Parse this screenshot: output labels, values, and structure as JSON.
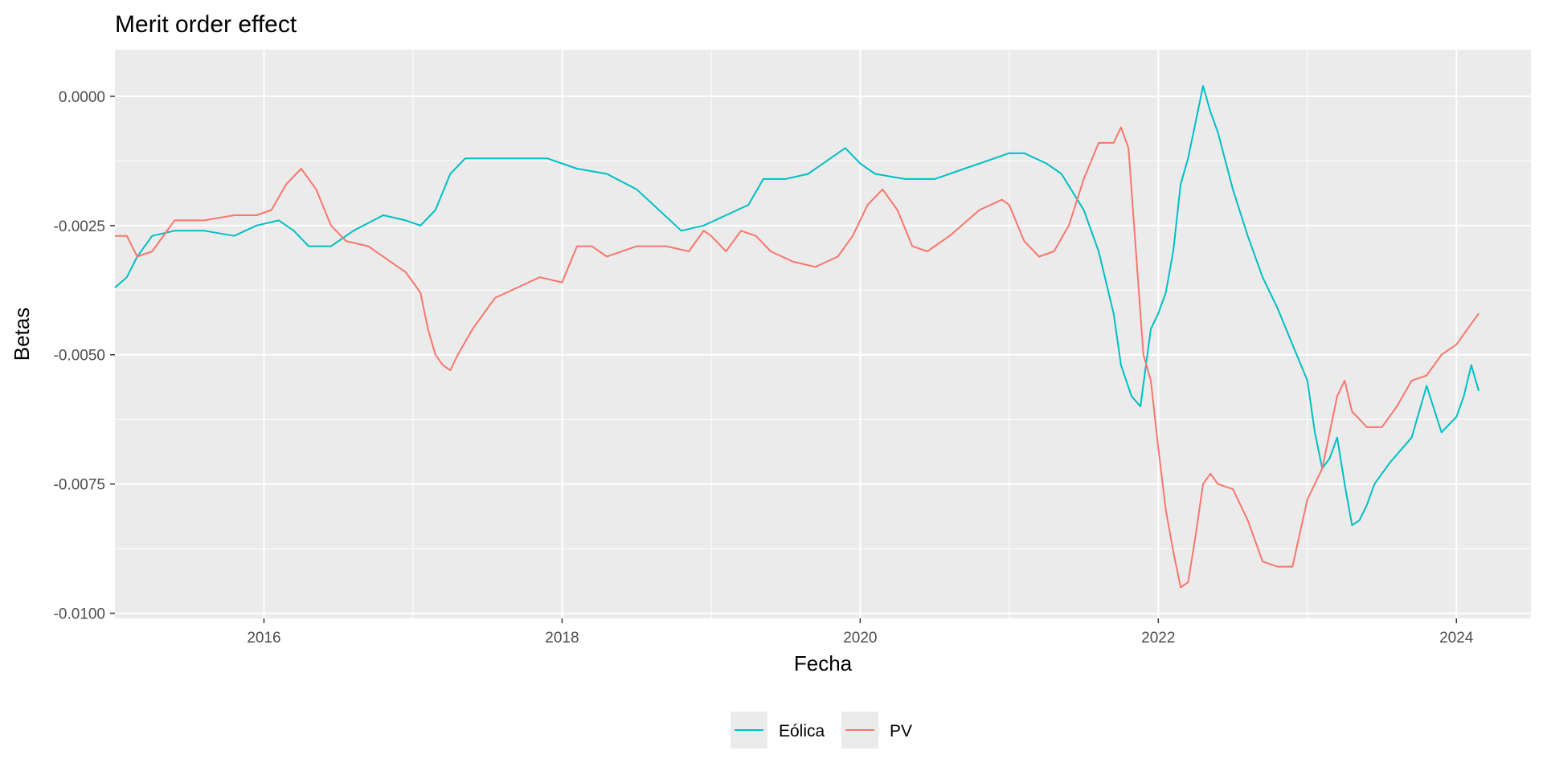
{
  "chart_data": {
    "type": "line",
    "title": "Merit order effect",
    "xlabel": "Fecha",
    "ylabel": "Betas",
    "xlim": [
      2015.0,
      2024.5
    ],
    "ylim": [
      -0.0101,
      0.0009
    ],
    "x_ticks": [
      {
        "value": 2016,
        "label": "2016"
      },
      {
        "value": 2018,
        "label": "2018"
      },
      {
        "value": 2020,
        "label": "2020"
      },
      {
        "value": 2022,
        "label": "2022"
      },
      {
        "value": 2024,
        "label": "2024"
      }
    ],
    "y_ticks": [
      {
        "value": 0.0,
        "label": "0.0000"
      },
      {
        "value": -0.0025,
        "label": "-0.0025"
      },
      {
        "value": -0.005,
        "label": "-0.0050"
      },
      {
        "value": -0.0075,
        "label": "-0.0075"
      },
      {
        "value": -0.01,
        "label": "-0.0100"
      }
    ],
    "grid": true,
    "legend_position": "bottom",
    "series": [
      {
        "name": "Eólica",
        "color": "#00BFC4",
        "x": [
          2015.0,
          2015.08,
          2015.15,
          2015.25,
          2015.4,
          2015.6,
          2015.8,
          2015.95,
          2016.1,
          2016.2,
          2016.3,
          2016.45,
          2016.6,
          2016.8,
          2016.95,
          2017.05,
          2017.15,
          2017.25,
          2017.35,
          2017.5,
          2017.7,
          2017.9,
          2018.1,
          2018.3,
          2018.5,
          2018.65,
          2018.8,
          2018.95,
          2019.1,
          2019.25,
          2019.35,
          2019.5,
          2019.65,
          2019.8,
          2019.9,
          2020.0,
          2020.1,
          2020.3,
          2020.5,
          2020.7,
          2020.9,
          2021.0,
          2021.1,
          2021.25,
          2021.35,
          2021.5,
          2021.6,
          2021.7,
          2021.75,
          2021.82,
          2021.88,
          2021.95,
          2022.0,
          2022.05,
          2022.1,
          2022.15,
          2022.2,
          2022.25,
          2022.3,
          2022.35,
          2022.4,
          2022.5,
          2022.6,
          2022.7,
          2022.8,
          2022.9,
          2023.0,
          2023.05,
          2023.1,
          2023.15,
          2023.2,
          2023.25,
          2023.3,
          2023.35,
          2023.4,
          2023.45,
          2023.55,
          2023.7,
          2023.8,
          2023.9,
          2024.0,
          2024.05,
          2024.1,
          2024.15
        ],
        "values": [
          -0.0037,
          -0.0035,
          -0.0031,
          -0.0027,
          -0.0026,
          -0.0026,
          -0.0027,
          -0.0025,
          -0.0024,
          -0.0026,
          -0.0029,
          -0.0029,
          -0.0026,
          -0.0023,
          -0.0024,
          -0.0025,
          -0.0022,
          -0.0015,
          -0.0012,
          -0.0012,
          -0.0012,
          -0.0012,
          -0.0014,
          -0.0015,
          -0.0018,
          -0.0022,
          -0.0026,
          -0.0025,
          -0.0023,
          -0.0021,
          -0.0016,
          -0.0016,
          -0.0015,
          -0.0012,
          -0.001,
          -0.0013,
          -0.0015,
          -0.0016,
          -0.0016,
          -0.0014,
          -0.0012,
          -0.0011,
          -0.0011,
          -0.0013,
          -0.0015,
          -0.0022,
          -0.003,
          -0.0042,
          -0.0052,
          -0.0058,
          -0.006,
          -0.0045,
          -0.0042,
          -0.0038,
          -0.003,
          -0.0017,
          -0.0012,
          -0.0005,
          0.0002,
          -0.0003,
          -0.0007,
          -0.0018,
          -0.0027,
          -0.0035,
          -0.0041,
          -0.0048,
          -0.0055,
          -0.0065,
          -0.0072,
          -0.007,
          -0.0066,
          -0.0075,
          -0.0083,
          -0.0082,
          -0.0079,
          -0.0075,
          -0.0071,
          -0.0066,
          -0.0056,
          -0.0065,
          -0.0062,
          -0.0058,
          -0.0052,
          -0.0057
        ]
      },
      {
        "name": "PV",
        "color": "#F8766D",
        "x": [
          2015.0,
          2015.08,
          2015.15,
          2015.25,
          2015.4,
          2015.6,
          2015.8,
          2015.95,
          2016.05,
          2016.15,
          2016.25,
          2016.35,
          2016.45,
          2016.55,
          2016.7,
          2016.85,
          2016.95,
          2017.05,
          2017.1,
          2017.15,
          2017.2,
          2017.25,
          2017.3,
          2017.4,
          2017.55,
          2017.7,
          2017.85,
          2018.0,
          2018.1,
          2018.2,
          2018.3,
          2018.5,
          2018.7,
          2018.85,
          2018.95,
          2019.0,
          2019.1,
          2019.2,
          2019.3,
          2019.4,
          2019.55,
          2019.7,
          2019.85,
          2019.95,
          2020.05,
          2020.15,
          2020.25,
          2020.35,
          2020.45,
          2020.6,
          2020.8,
          2020.95,
          2021.0,
          2021.1,
          2021.2,
          2021.3,
          2021.4,
          2021.5,
          2021.6,
          2021.7,
          2021.75,
          2021.8,
          2021.85,
          2021.9,
          2021.95,
          2022.0,
          2022.05,
          2022.1,
          2022.15,
          2022.2,
          2022.25,
          2022.3,
          2022.35,
          2022.4,
          2022.5,
          2022.6,
          2022.7,
          2022.8,
          2022.9,
          2023.0,
          2023.1,
          2023.15,
          2023.2,
          2023.25,
          2023.3,
          2023.4,
          2023.5,
          2023.6,
          2023.7,
          2023.8,
          2023.9,
          2024.0,
          2024.1,
          2024.15
        ],
        "values": [
          -0.0027,
          -0.0027,
          -0.0031,
          -0.003,
          -0.0024,
          -0.0024,
          -0.0023,
          -0.0023,
          -0.0022,
          -0.0017,
          -0.0014,
          -0.0018,
          -0.0025,
          -0.0028,
          -0.0029,
          -0.0032,
          -0.0034,
          -0.0038,
          -0.0045,
          -0.005,
          -0.0052,
          -0.0053,
          -0.005,
          -0.0045,
          -0.0039,
          -0.0037,
          -0.0035,
          -0.0036,
          -0.0029,
          -0.0029,
          -0.0031,
          -0.0029,
          -0.0029,
          -0.003,
          -0.0026,
          -0.0027,
          -0.003,
          -0.0026,
          -0.0027,
          -0.003,
          -0.0032,
          -0.0033,
          -0.0031,
          -0.0027,
          -0.0021,
          -0.0018,
          -0.0022,
          -0.0029,
          -0.003,
          -0.0027,
          -0.0022,
          -0.002,
          -0.0021,
          -0.0028,
          -0.0031,
          -0.003,
          -0.0025,
          -0.0016,
          -0.0009,
          -0.0009,
          -0.0006,
          -0.001,
          -0.003,
          -0.005,
          -0.0055,
          -0.0068,
          -0.008,
          -0.0088,
          -0.0095,
          -0.0094,
          -0.0085,
          -0.0075,
          -0.0073,
          -0.0075,
          -0.0076,
          -0.0082,
          -0.009,
          -0.0091,
          -0.0091,
          -0.0078,
          -0.0072,
          -0.0065,
          -0.0058,
          -0.0055,
          -0.0061,
          -0.0064,
          -0.0064,
          -0.006,
          -0.0055,
          -0.0054,
          -0.005,
          -0.0048,
          -0.0044,
          -0.0042
        ]
      }
    ]
  }
}
